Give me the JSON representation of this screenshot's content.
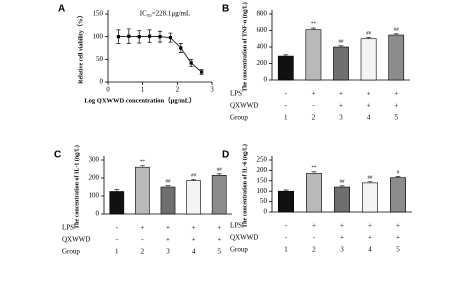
{
  "chart_data": [
    {
      "type": "scatter",
      "panel": "A",
      "title": "IC₅₀=228.1μg/mL",
      "x_label": "Log QXWWD concentration（μg/mL）",
      "y_label": "Relative cell viability（%）",
      "x": [
        0.3,
        0.6,
        0.9,
        1.2,
        1.5,
        1.8,
        2.1,
        2.4,
        2.7
      ],
      "values": [
        100,
        101,
        100,
        101,
        100,
        98,
        75,
        42,
        22
      ],
      "errors": [
        15,
        16,
        14,
        14,
        12,
        10,
        10,
        8,
        5
      ],
      "color": "#000000",
      "xlim": [
        0,
        3
      ],
      "xticks": [
        0,
        1,
        2,
        3
      ],
      "ylim": [
        0,
        150
      ],
      "yticks": [
        0,
        50,
        100,
        150
      ]
    },
    {
      "type": "bar",
      "panel": "B",
      "y_label": "The concentration of TNF-α (ng/L)",
      "categories": [
        "1",
        "2",
        "3",
        "4",
        "5"
      ],
      "values": [
        290,
        610,
        400,
        500,
        545
      ],
      "errors": [
        15,
        20,
        15,
        15,
        15
      ],
      "colors": [
        "#111111",
        "#b9b9b9",
        "#6f6f6f",
        "#f4f4f4",
        "#8c8c8c"
      ],
      "annotations": [
        null,
        "**",
        "##",
        "##",
        "##"
      ],
      "rows": [
        {
          "label": "LPS",
          "values": [
            "-",
            "+",
            "+",
            "+",
            "+"
          ]
        },
        {
          "label": "QXWWD",
          "values": [
            "-",
            "-",
            "+",
            "+",
            "+"
          ]
        }
      ],
      "group_label": "Group",
      "ylim": [
        0,
        800
      ],
      "yticks": [
        0,
        200,
        400,
        600,
        800
      ]
    },
    {
      "type": "bar",
      "panel": "C",
      "y_label": "The concentration of IL-1 (ng/L)",
      "categories": [
        "1",
        "2",
        "3",
        "4",
        "5"
      ],
      "values": [
        125,
        260,
        150,
        185,
        215
      ],
      "errors": [
        10,
        8,
        8,
        8,
        8
      ],
      "colors": [
        "#111111",
        "#b9b9b9",
        "#6f6f6f",
        "#f4f4f4",
        "#8c8c8c"
      ],
      "annotations": [
        null,
        "**",
        "##",
        "##",
        "##"
      ],
      "rows": [
        {
          "label": "LPS",
          "values": [
            "-",
            "+",
            "+",
            "+",
            "+"
          ]
        },
        {
          "label": "QXWWD",
          "values": [
            "-",
            "-",
            "+",
            "+",
            "+"
          ]
        }
      ],
      "group_label": "Group",
      "ylim": [
        0,
        300
      ],
      "yticks": [
        0,
        100,
        200,
        300
      ]
    },
    {
      "type": "bar",
      "panel": "D",
      "y_label": "The concentration of IL-6 (ng/L)",
      "categories": [
        "1",
        "2",
        "3",
        "4",
        "5"
      ],
      "values": [
        100,
        185,
        120,
        140,
        165
      ],
      "errors": [
        6,
        8,
        6,
        6,
        6
      ],
      "colors": [
        "#111111",
        "#b9b9b9",
        "#6f6f6f",
        "#f4f4f4",
        "#8c8c8c"
      ],
      "annotations": [
        null,
        "**",
        "##",
        "##",
        "#"
      ],
      "rows": [
        {
          "label": "LPS",
          "values": [
            "-",
            "+",
            "+",
            "+",
            "+"
          ]
        },
        {
          "label": "QXWWD",
          "values": [
            "-",
            "-",
            "+",
            "+",
            "+"
          ]
        }
      ],
      "group_label": "Group",
      "ylim": [
        0,
        250
      ],
      "yticks": [
        0,
        50,
        100,
        150,
        200,
        250
      ]
    }
  ]
}
